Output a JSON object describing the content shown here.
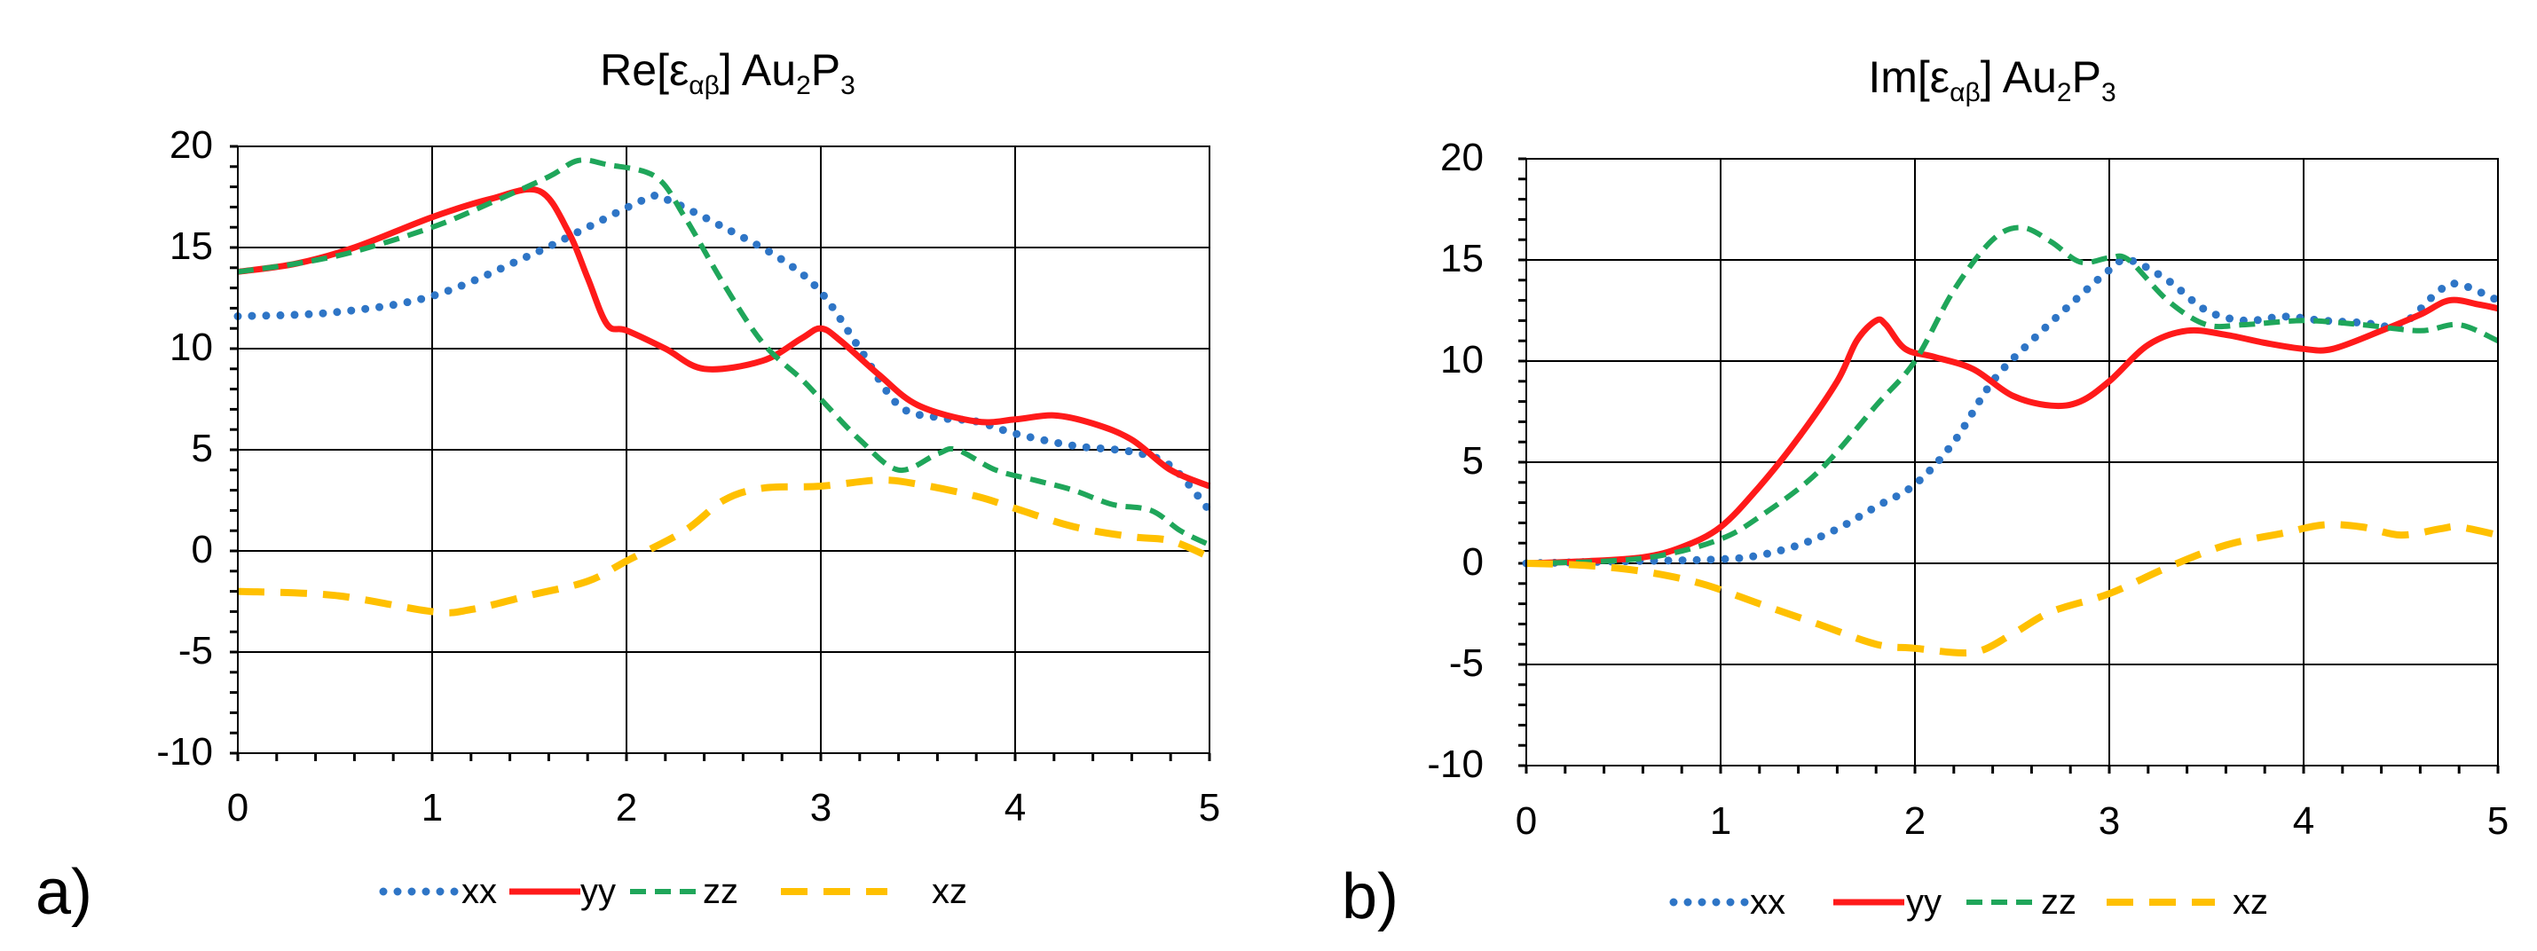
{
  "colors": {
    "xx": "#2e75c6",
    "yy": "#ff1a1a",
    "zz": "#1fa65a",
    "xz": "#ffc000"
  },
  "chart_data": [
    {
      "type": "line",
      "panel_label": "a)",
      "title": {
        "main": "Re[ε",
        "sub": "αβ",
        "close": "] Au",
        "sub2": "2",
        "mid": "P",
        "sub3": "3"
      },
      "xlim": [
        0,
        5
      ],
      "ylim": [
        -10,
        20
      ],
      "xticks": [
        0,
        1,
        2,
        3,
        4,
        5
      ],
      "yticks": [
        -10,
        -5,
        0,
        5,
        10,
        15,
        20
      ],
      "xtick_labels": [
        "0",
        "1",
        "2",
        "3",
        "4",
        "5"
      ],
      "ytick_labels": [
        "-10",
        "-5",
        "0",
        "5",
        "10",
        "15",
        "20"
      ],
      "grid": true,
      "legend": "bottom",
      "series": [
        {
          "name": "xx",
          "style": "dotted",
          "x": [
            0,
            0.5,
            1,
            1.5,
            1.8,
            2.1,
            2.2,
            2.5,
            2.8,
            3.0,
            3.2,
            3.4,
            3.6,
            3.8,
            4.0,
            4.3,
            4.6,
            4.8,
            5.0
          ],
          "y": [
            11.6,
            11.8,
            12.6,
            14.6,
            16.0,
            17.4,
            17.4,
            16.0,
            14.4,
            12.8,
            10.0,
            7.2,
            6.6,
            6.4,
            5.8,
            5.2,
            4.9,
            4.2,
            2.0
          ]
        },
        {
          "name": "yy",
          "style": "solid",
          "x": [
            0,
            0.3,
            0.6,
            1.0,
            1.3,
            1.55,
            1.7,
            1.8,
            1.9,
            2.0,
            2.2,
            2.4,
            2.7,
            2.9,
            3.0,
            3.1,
            3.3,
            3.5,
            3.8,
            4.0,
            4.2,
            4.4,
            4.6,
            4.8,
            5.0
          ],
          "y": [
            13.8,
            14.2,
            15.0,
            16.5,
            17.4,
            17.8,
            15.8,
            13.5,
            11.2,
            10.9,
            10.0,
            9.0,
            9.4,
            10.5,
            11.0,
            10.4,
            8.7,
            7.2,
            6.4,
            6.5,
            6.7,
            6.3,
            5.5,
            4.0,
            3.2
          ]
        },
        {
          "name": "zz",
          "style": "dashed",
          "x": [
            0,
            0.3,
            0.6,
            1.0,
            1.3,
            1.6,
            1.75,
            1.9,
            2.15,
            2.3,
            2.5,
            2.7,
            2.9,
            3.0,
            3.2,
            3.4,
            3.6,
            3.7,
            3.9,
            4.1,
            4.3,
            4.5,
            4.7,
            4.85,
            5.0
          ],
          "y": [
            13.8,
            14.2,
            14.8,
            16.0,
            17.2,
            18.5,
            19.3,
            19.1,
            18.5,
            16.5,
            13.2,
            10.3,
            8.5,
            7.5,
            5.5,
            4.0,
            4.8,
            5.0,
            4.0,
            3.5,
            3.0,
            2.3,
            2.0,
            1.0,
            0.3
          ]
        },
        {
          "name": "xz",
          "style": "dashed",
          "x": [
            0,
            0.5,
            1.0,
            1.2,
            1.5,
            1.8,
            2.0,
            2.3,
            2.5,
            2.7,
            3.0,
            3.3,
            3.5,
            3.8,
            4.0,
            4.3,
            4.6,
            4.8,
            5.0
          ],
          "y": [
            -2.0,
            -2.2,
            -3.0,
            -2.9,
            -2.2,
            -1.5,
            -0.5,
            1.0,
            2.5,
            3.1,
            3.2,
            3.5,
            3.3,
            2.7,
            2.1,
            1.2,
            0.7,
            0.5,
            -0.3
          ]
        }
      ]
    },
    {
      "type": "line",
      "panel_label": "b)",
      "title": {
        "main": "Im[ε",
        "sub": "αβ",
        "close": "] Au",
        "sub2": "2",
        "mid": "P",
        "sub3": "3"
      },
      "xlim": [
        0,
        5
      ],
      "ylim": [
        -10,
        20
      ],
      "xticks": [
        0,
        1,
        2,
        3,
        4,
        5
      ],
      "yticks": [
        -10,
        -5,
        0,
        5,
        10,
        15,
        20
      ],
      "xtick_labels": [
        "0",
        "1",
        "2",
        "3",
        "4",
        "5"
      ],
      "ytick_labels": [
        "-10",
        "-5",
        "0",
        "5",
        "10",
        "15",
        "20"
      ],
      "grid": true,
      "legend": "bottom",
      "series": [
        {
          "name": "xx",
          "style": "dotted",
          "x": [
            0,
            0.5,
            1.0,
            1.2,
            1.4,
            1.6,
            1.8,
            2.0,
            2.2,
            2.4,
            2.6,
            2.8,
            3.0,
            3.1,
            3.3,
            3.5,
            3.7,
            3.9,
            4.1,
            4.3,
            4.5,
            4.7,
            4.8,
            5.0
          ],
          "y": [
            0,
            0.1,
            0.2,
            0.4,
            0.9,
            1.7,
            2.8,
            3.9,
            6.0,
            9.0,
            11.0,
            12.8,
            14.5,
            15.0,
            14.0,
            12.5,
            12.0,
            12.2,
            12.0,
            11.9,
            11.8,
            13.5,
            13.8,
            13.0
          ]
        },
        {
          "name": "yy",
          "style": "solid",
          "x": [
            0,
            0.3,
            0.6,
            0.8,
            1.0,
            1.2,
            1.4,
            1.6,
            1.7,
            1.8,
            1.85,
            1.95,
            2.1,
            2.3,
            2.5,
            2.7,
            2.85,
            3.0,
            3.2,
            3.4,
            3.6,
            3.8,
            4.0,
            4.15,
            4.4,
            4.6,
            4.75,
            4.9,
            5.0
          ],
          "y": [
            0,
            0.1,
            0.3,
            0.8,
            1.8,
            3.8,
            6.2,
            9.0,
            11.0,
            12.0,
            11.8,
            10.6,
            10.2,
            9.6,
            8.3,
            7.8,
            8.0,
            9.0,
            10.8,
            11.5,
            11.3,
            10.9,
            10.6,
            10.6,
            11.5,
            12.3,
            13.0,
            12.8,
            12.6
          ]
        },
        {
          "name": "zz",
          "style": "dashed",
          "x": [
            0,
            0.4,
            0.7,
            1.0,
            1.2,
            1.5,
            1.8,
            2.0,
            2.2,
            2.4,
            2.55,
            2.7,
            2.85,
            3.0,
            3.1,
            3.3,
            3.5,
            3.7,
            4.0,
            4.3,
            4.6,
            4.8,
            5.0
          ],
          "y": [
            0,
            0.1,
            0.4,
            1.2,
            2.3,
            4.5,
            7.8,
            10.0,
            13.5,
            16.0,
            16.6,
            15.9,
            14.9,
            15.1,
            15.0,
            13.0,
            11.8,
            11.8,
            12.0,
            11.8,
            11.5,
            11.8,
            11.0
          ]
        },
        {
          "name": "xz",
          "style": "dashed",
          "x": [
            0,
            0.3,
            0.6,
            0.9,
            1.2,
            1.5,
            1.8,
            2.0,
            2.3,
            2.5,
            2.7,
            3.0,
            3.3,
            3.6,
            3.9,
            4.1,
            4.3,
            4.5,
            4.7,
            4.8,
            5.0
          ],
          "y": [
            0,
            -0.1,
            -0.4,
            -1.0,
            -2.0,
            -3.0,
            -4.0,
            -4.2,
            -4.4,
            -3.5,
            -2.4,
            -1.5,
            -0.2,
            0.9,
            1.5,
            1.9,
            1.8,
            1.4,
            1.7,
            1.8,
            1.4
          ]
        }
      ]
    }
  ]
}
